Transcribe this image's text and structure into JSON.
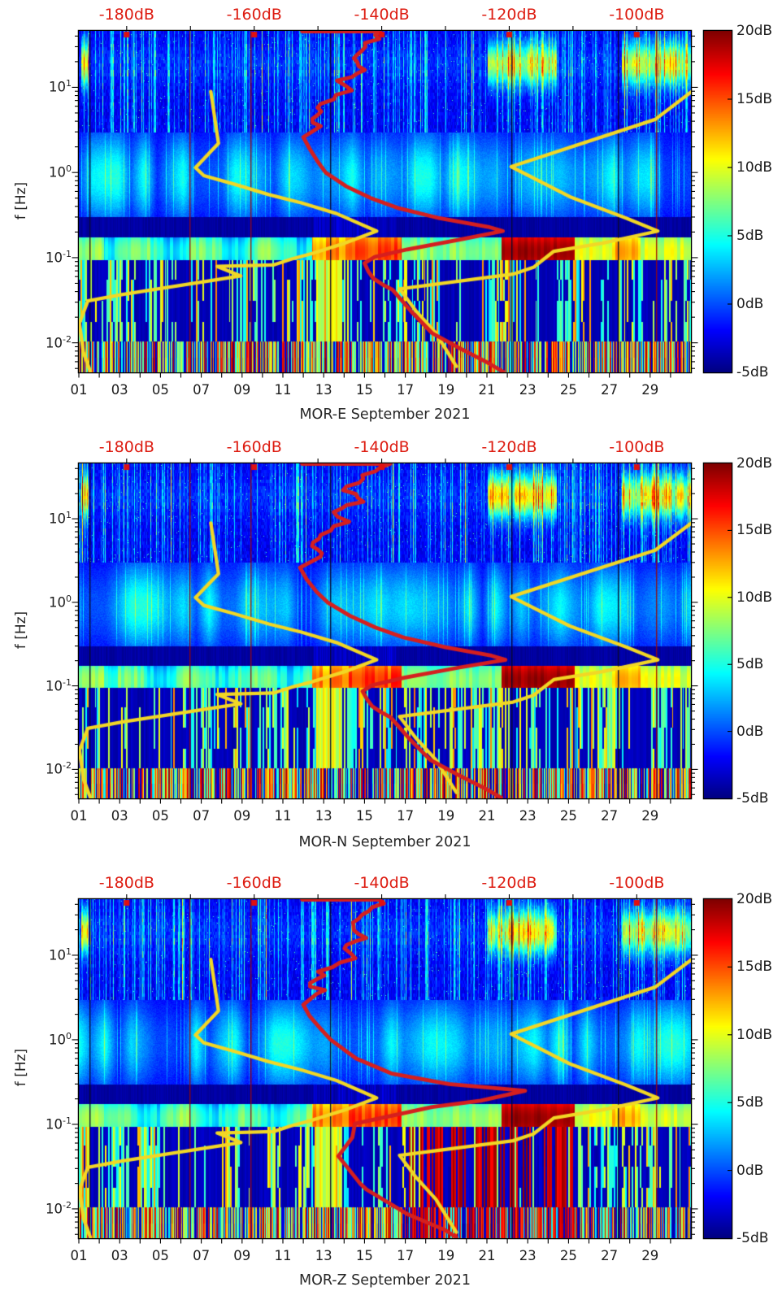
{
  "colors": {
    "background": "#ffffff",
    "top_label_red": "#dd1b10",
    "psd_curve_red": "#d51f1f",
    "noise_model_yellow": "#f2d725",
    "axis_black": "#000000",
    "text_dark": "#262626"
  },
  "top_axis": {
    "unit": "dB",
    "tick_labels": [
      "-180dB",
      "-160dB",
      "-140dB",
      "-120dB",
      "-100dB"
    ],
    "tick_values": [
      -180,
      -160,
      -140,
      -120,
      -100
    ],
    "range_db": [
      -187.5,
      -91.5
    ],
    "minor_tick_step_db": 10,
    "marker": "red filled squares at labeled values just inside plot top edge"
  },
  "colorbar": {
    "tick_labels": [
      "20dB",
      "15dB",
      "10dB",
      "5dB",
      "0dB",
      "-5dB"
    ],
    "tick_values": [
      20,
      15,
      10,
      5,
      0,
      -5
    ],
    "range_db": [
      -5,
      20
    ],
    "colormap": "jet"
  },
  "x_axis": {
    "tick_labels": [
      "01",
      "03",
      "05",
      "07",
      "09",
      "11",
      "13",
      "15",
      "17",
      "19",
      "21",
      "23",
      "25",
      "27",
      "29"
    ],
    "tick_days": [
      1,
      3,
      5,
      7,
      9,
      11,
      13,
      15,
      17,
      19,
      21,
      23,
      25,
      27,
      29
    ],
    "minor_tick_every_day": true,
    "range_days": [
      1,
      31
    ]
  },
  "y_axis": {
    "label": "f [Hz]",
    "scale": "log",
    "tick_exponents": [
      1,
      0,
      -1,
      -2
    ],
    "tick_labels": [
      "10^1",
      "10^0",
      "10^-1",
      "10^-2"
    ],
    "range_hz": [
      0.0045,
      46
    ]
  },
  "noise_models": {
    "description": "yellow reference noise-model curves plotted against top dB axis vs frequency",
    "nlnm_db_hz": [
      [
        -166.8,
        8.9
      ],
      [
        -165.6,
        2.2
      ],
      [
        -169.2,
        1.14
      ],
      [
        -167.9,
        0.92
      ],
      [
        -163.4,
        0.74
      ],
      [
        -157.7,
        0.55
      ],
      [
        -152.6,
        0.44
      ],
      [
        -147.1,
        0.33
      ],
      [
        -140.8,
        0.205
      ],
      [
        -145.8,
        0.148
      ],
      [
        -150.9,
        0.112
      ],
      [
        -154.2,
        0.096
      ],
      [
        -157.0,
        0.082
      ],
      [
        -165.8,
        0.079
      ],
      [
        -162.1,
        0.061
      ],
      [
        -180.6,
        0.037
      ],
      [
        -186.1,
        0.031
      ],
      [
        -187.4,
        0.017
      ],
      [
        -186.8,
        0.0078
      ],
      [
        -185.7,
        0.0046
      ]
    ],
    "nhnm_db_hz": [
      [
        -91.4,
        8.9
      ],
      [
        -97.1,
        4.2
      ],
      [
        -119.7,
        1.17
      ],
      [
        -110.5,
        0.52
      ],
      [
        -101.6,
        0.29
      ],
      [
        -96.7,
        0.205
      ],
      [
        -105.4,
        0.148
      ],
      [
        -113.0,
        0.119
      ],
      [
        -116.2,
        0.077
      ],
      [
        -119.4,
        0.064
      ],
      [
        -137.2,
        0.043
      ],
      [
        -134.7,
        0.024
      ],
      [
        -131.5,
        0.013
      ],
      [
        -128.3,
        0.0053
      ]
    ]
  },
  "gap_lines": {
    "red_days": [
      6.4,
      9.4,
      29.3
    ],
    "dark_days": [
      1.52,
      13.3,
      22.2,
      27.4
    ]
  },
  "chart_data": [
    {
      "type": "heatmap",
      "station": "MOR-E",
      "title": "MOR-E September 2021",
      "ylabel": "f [Hz]",
      "x": "days of September 2021 (01-30)",
      "y": "frequency Hz, log scale ~0.0045-46",
      "z_unit": "dB",
      "z_range": [
        -5,
        20
      ],
      "psd_median_curve_db_hz": [
        [
          -152.5,
          45.5
        ],
        [
          -139.8,
          45.5
        ],
        [
          -142.6,
          30
        ],
        [
          -145.2,
          22
        ],
        [
          -143.0,
          16
        ],
        [
          -146.4,
          12
        ],
        [
          -144.9,
          9.2
        ],
        [
          -149.0,
          6.4
        ],
        [
          -150.7,
          4.7
        ],
        [
          -149.4,
          3.5
        ],
        [
          -152.3,
          2.6
        ],
        [
          -151.3,
          1.9
        ],
        [
          -150.0,
          1.33
        ],
        [
          -148.8,
          1.0
        ],
        [
          -145.6,
          0.69
        ],
        [
          -141.7,
          0.5
        ],
        [
          -137.3,
          0.38
        ],
        [
          -130.9,
          0.29
        ],
        [
          -123.3,
          0.23
        ],
        [
          -121.0,
          0.205
        ],
        [
          -127.2,
          0.166
        ],
        [
          -136.0,
          0.125
        ],
        [
          -141.1,
          0.102
        ],
        [
          -142.7,
          0.086
        ],
        [
          -142.1,
          0.069
        ],
        [
          -141.3,
          0.057
        ],
        [
          -139.8,
          0.048
        ],
        [
          -138.3,
          0.042
        ],
        [
          -135.3,
          0.023
        ],
        [
          -132.1,
          0.013
        ],
        [
          -127.7,
          0.0086
        ],
        [
          -123.3,
          0.0058
        ],
        [
          -121.0,
          0.0046
        ]
      ],
      "spectrogram_features": {
        "microseism_band_hz": [
          0.095,
          0.175
        ],
        "storm_episodes_days": [
          [
            12.4,
            16.8
          ],
          [
            21.7,
            25.3
          ]
        ],
        "storm_peak_db": [
          14,
          19
        ],
        "hf_bright_patches": {
          "freq_hz": [
            12,
            30
          ],
          "days": [
            [
              21.0,
              24.4
            ],
            [
              27.6,
              31
            ]
          ]
        },
        "quiet_band_hz": [
          0.175,
          0.3
        ],
        "striped_band_hz": [
          0.0045,
          0.095
        ]
      }
    },
    {
      "type": "heatmap",
      "station": "MOR-N",
      "title": "MOR-N September 2021",
      "ylabel": "f [Hz]",
      "x": "days of September 2021 (01-30)",
      "y": "frequency Hz, log scale ~0.0045-46",
      "z_unit": "dB",
      "z_range": [
        -5,
        20
      ],
      "psd_median_curve_db_hz": [
        [
          -152.5,
          45.5
        ],
        [
          -139.5,
          45.5
        ],
        [
          -143.0,
          30
        ],
        [
          -145.5,
          22
        ],
        [
          -143.5,
          16
        ],
        [
          -147.0,
          12
        ],
        [
          -145.5,
          9.2
        ],
        [
          -149.5,
          6.4
        ],
        [
          -151.0,
          4.7
        ],
        [
          -150.0,
          3.5
        ],
        [
          -152.8,
          2.6
        ],
        [
          -151.8,
          1.9
        ],
        [
          -150.2,
          1.33
        ],
        [
          -148.5,
          1.0
        ],
        [
          -145.0,
          0.69
        ],
        [
          -141.0,
          0.5
        ],
        [
          -136.6,
          0.38
        ],
        [
          -130.0,
          0.29
        ],
        [
          -122.8,
          0.23
        ],
        [
          -120.6,
          0.205
        ],
        [
          -127.8,
          0.166
        ],
        [
          -136.5,
          0.125
        ],
        [
          -141.5,
          0.102
        ],
        [
          -143.0,
          0.086
        ],
        [
          -142.3,
          0.069
        ],
        [
          -141.5,
          0.057
        ],
        [
          -140.0,
          0.048
        ],
        [
          -138.6,
          0.042
        ],
        [
          -135.6,
          0.023
        ],
        [
          -132.4,
          0.013
        ],
        [
          -128.0,
          0.0086
        ],
        [
          -123.6,
          0.0058
        ],
        [
          -121.3,
          0.0046
        ]
      ],
      "spectrogram_features": {
        "microseism_band_hz": [
          0.095,
          0.175
        ],
        "storm_episodes_days": [
          [
            12.4,
            16.8
          ],
          [
            21.7,
            25.3
          ]
        ],
        "storm_peak_db": [
          14,
          19
        ],
        "hf_bright_patches": {
          "freq_hz": [
            12,
            30
          ],
          "days": [
            [
              21.0,
              24.4
            ],
            [
              27.6,
              31
            ]
          ]
        },
        "quiet_band_hz": [
          0.175,
          0.3
        ],
        "striped_band_hz": [
          0.0045,
          0.095
        ]
      }
    },
    {
      "type": "heatmap",
      "station": "MOR-Z",
      "title": "MOR-Z September 2021",
      "ylabel": "f [Hz]",
      "x": "days of September 2021 (01-30)",
      "y": "frequency Hz, log scale ~0.0045-46",
      "z_unit": "dB",
      "z_range": [
        -5,
        20
      ],
      "psd_median_curve_db_hz": [
        [
          -152.5,
          45.5
        ],
        [
          -139.8,
          45.5
        ],
        [
          -142.6,
          30
        ],
        [
          -145.2,
          22
        ],
        [
          -143.0,
          16
        ],
        [
          -146.4,
          12
        ],
        [
          -144.9,
          9.2
        ],
        [
          -149.0,
          6.4
        ],
        [
          -150.7,
          4.7
        ],
        [
          -149.4,
          3.5
        ],
        [
          -152.3,
          2.6
        ],
        [
          -151.3,
          1.9
        ],
        [
          -149.5,
          1.33
        ],
        [
          -148.0,
          1.0
        ],
        [
          -144.0,
          0.6
        ],
        [
          -138.5,
          0.4
        ],
        [
          -129.5,
          0.3
        ],
        [
          -117.5,
          0.25
        ],
        [
          -124.5,
          0.19
        ],
        [
          -132.1,
          0.16
        ],
        [
          -144.2,
          0.102
        ],
        [
          -144.6,
          0.07
        ],
        [
          -146.8,
          0.042
        ],
        [
          -143.4,
          0.02
        ],
        [
          -142.4,
          0.017
        ],
        [
          -136.0,
          0.0087
        ],
        [
          -130.0,
          0.0056
        ],
        [
          -128.3,
          0.0046
        ]
      ],
      "spectrogram_features": {
        "microseism_band_hz": [
          0.095,
          0.175
        ],
        "storm_episodes_days": [
          [
            12.4,
            16.8
          ],
          [
            21.7,
            25.3
          ]
        ],
        "storm_peak_db": [
          14,
          19
        ],
        "hf_bright_patches": {
          "freq_hz": [
            12,
            30
          ],
          "days": [
            [
              21.0,
              24.4
            ],
            [
              27.6,
              31
            ]
          ]
        },
        "quiet_band_hz": [
          0.175,
          0.3
        ],
        "striped_band_hz": [
          0.0045,
          0.095
        ],
        "strong_long_period_red_stripes_days": [
          17.1,
          25.6
        ]
      }
    }
  ]
}
